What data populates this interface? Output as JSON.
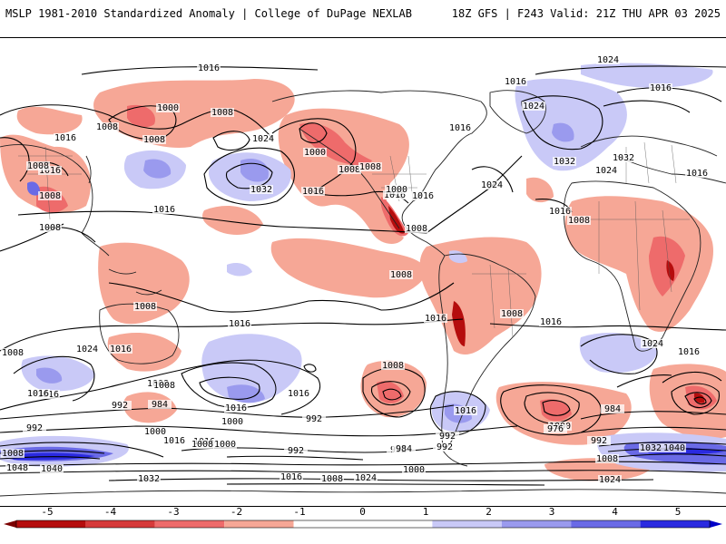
{
  "header": {
    "left": "MSLP 1981-2010 Standardized Anomaly | College of DuPage NEXLAB",
    "right": "18Z GFS | F243 Valid: 21Z THU APR 03 2025"
  },
  "colorbar": {
    "ticks": [
      "-5",
      "-4",
      "-3",
      "-2",
      "-1",
      "0",
      "1",
      "2",
      "3",
      "4",
      "5"
    ],
    "bins": [
      {
        "from": -5,
        "to": -4,
        "color": "#b50d0d"
      },
      {
        "from": -4,
        "to": -3,
        "color": "#d63a3a"
      },
      {
        "from": -3,
        "to": -2,
        "color": "#ee6b6b"
      },
      {
        "from": -2,
        "to": -1,
        "color": "#f6a796"
      },
      {
        "from": -1,
        "to": 0,
        "color": "#ffffff"
      },
      {
        "from": 0,
        "to": 1,
        "color": "#ffffff"
      },
      {
        "from": 1,
        "to": 2,
        "color": "#c9c9f7"
      },
      {
        "from": 2,
        "to": 3,
        "color": "#9a9aee"
      },
      {
        "from": 3,
        "to": 4,
        "color": "#6a6ae6"
      },
      {
        "from": 4,
        "to": 5,
        "color": "#2a2ae0"
      }
    ],
    "end_left_color": "#7a0000",
    "end_right_color": "#0000c8"
  },
  "map": {
    "contour_labels": [
      "1016",
      "1024",
      "1016",
      "1016",
      "1008",
      "1000",
      "1008",
      "1008",
      "1016",
      "1016",
      "1008",
      "1024",
      "1032",
      "1016",
      "1008",
      "1016",
      "1016",
      "1000",
      "1008",
      "1016",
      "1000",
      "1016",
      "1024",
      "1024",
      "1032",
      "1024",
      "1016",
      "1008",
      "1016",
      "1008",
      "1008",
      "1008",
      "1008",
      "1016",
      "1008",
      "1008",
      "1016",
      "1024",
      "1016",
      "1016",
      "1016",
      "1016",
      "1008",
      "1016",
      "1008",
      "1024",
      "1016",
      "1016",
      "1008",
      "992",
      "984",
      "1000",
      "1008",
      "992",
      "1000",
      "992",
      "1016",
      "1008",
      "992",
      "1000",
      "992",
      "992",
      "984",
      "1000",
      "976",
      "984",
      "992",
      "1008",
      "1000",
      "992",
      "1008",
      "1048",
      "1040",
      "1032",
      "1008",
      "1016",
      "1024",
      "1032",
      "1016",
      "1024",
      "1016",
      "1032",
      "1040"
    ]
  }
}
